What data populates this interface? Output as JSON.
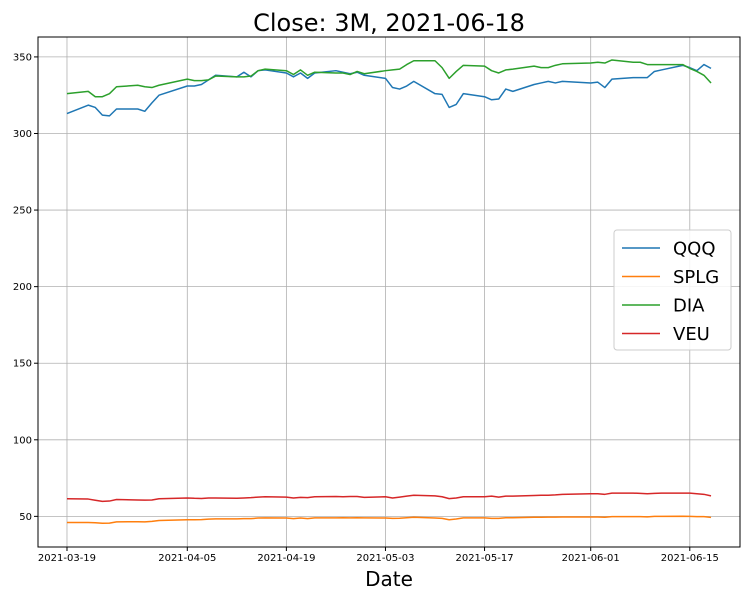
{
  "chart_data": {
    "type": "line",
    "title": "Close: 3M, 2021-06-18",
    "xlabel": "Date",
    "ylabel": "",
    "grid": true,
    "legend_position": "center-right",
    "ylim": [
      30,
      363
    ],
    "yticks": [
      50,
      100,
      150,
      200,
      250,
      300,
      350
    ],
    "xtick_labels": [
      "2021-03-19",
      "2021-04-05",
      "2021-04-19",
      "2021-05-03",
      "2021-05-17",
      "2021-06-01",
      "2021-06-15"
    ],
    "x": [
      "2021-03-19",
      "2021-03-22",
      "2021-03-23",
      "2021-03-24",
      "2021-03-25",
      "2021-03-26",
      "2021-03-29",
      "2021-03-30",
      "2021-03-31",
      "2021-04-01",
      "2021-04-05",
      "2021-04-06",
      "2021-04-07",
      "2021-04-08",
      "2021-04-09",
      "2021-04-12",
      "2021-04-13",
      "2021-04-14",
      "2021-04-15",
      "2021-04-16",
      "2021-04-19",
      "2021-04-20",
      "2021-04-21",
      "2021-04-22",
      "2021-04-23",
      "2021-04-26",
      "2021-04-27",
      "2021-04-28",
      "2021-04-29",
      "2021-04-30",
      "2021-05-03",
      "2021-05-04",
      "2021-05-05",
      "2021-05-06",
      "2021-05-07",
      "2021-05-10",
      "2021-05-11",
      "2021-05-12",
      "2021-05-13",
      "2021-05-14",
      "2021-05-17",
      "2021-05-18",
      "2021-05-19",
      "2021-05-20",
      "2021-05-21",
      "2021-05-24",
      "2021-05-25",
      "2021-05-26",
      "2021-05-27",
      "2021-05-28",
      "2021-06-01",
      "2021-06-02",
      "2021-06-03",
      "2021-06-04",
      "2021-06-07",
      "2021-06-08",
      "2021-06-09",
      "2021-06-10",
      "2021-06-11",
      "2021-06-14",
      "2021-06-15",
      "2021-06-16",
      "2021-06-17",
      "2021-06-18"
    ],
    "series": [
      {
        "name": "QQQ",
        "color": "#1f77b4",
        "values": [
          313,
          318.5,
          317,
          312,
          311.5,
          316,
          316,
          314.5,
          320,
          325,
          331,
          331,
          332,
          335,
          338,
          337,
          340,
          337,
          341,
          341.5,
          339.5,
          337,
          339.5,
          336,
          339.5,
          341,
          340,
          339,
          340,
          338,
          336,
          330,
          329,
          331,
          334,
          326,
          325.5,
          317,
          319,
          326,
          324,
          322,
          322.5,
          329,
          327.5,
          332,
          333,
          334,
          333,
          334,
          333,
          333.5,
          330,
          335.5,
          336.5,
          336.5,
          336.5,
          340.5,
          341.5,
          344.5,
          343,
          341,
          345,
          342.5
        ]
      },
      {
        "name": "SPLG",
        "color": "#ff7f0e",
        "values": [
          46,
          46,
          45.8,
          45.5,
          45.6,
          46.4,
          46.5,
          46.4,
          46.7,
          47.3,
          47.8,
          47.8,
          47.9,
          48.2,
          48.4,
          48.4,
          48.5,
          48.5,
          48.9,
          49,
          48.9,
          48.5,
          48.9,
          48.5,
          49,
          49,
          49.1,
          49,
          49.1,
          49,
          48.9,
          48.7,
          48.8,
          49.1,
          49.4,
          48.9,
          48.7,
          47.8,
          48.3,
          49,
          49,
          48.7,
          48.7,
          49.1,
          49.1,
          49.4,
          49.4,
          49.5,
          49.5,
          49.6,
          49.6,
          49.6,
          49.4,
          49.8,
          49.8,
          49.8,
          49.7,
          50,
          50,
          50.1,
          50,
          49.8,
          49.8,
          49.3
        ]
      },
      {
        "name": "DIA",
        "color": "#2ca02c",
        "values": [
          326,
          327.5,
          324,
          324,
          326,
          330.5,
          331.5,
          330.5,
          330,
          331.5,
          335.5,
          334.5,
          334.5,
          335,
          337.5,
          337,
          337,
          337.5,
          341,
          342,
          341,
          338.5,
          341.5,
          338,
          340,
          339.5,
          339.5,
          338.5,
          340.5,
          339,
          341,
          341.5,
          342,
          345,
          347.5,
          347.5,
          343,
          336,
          340.5,
          344.5,
          344,
          341,
          339.5,
          341.5,
          342,
          344,
          343,
          343,
          344.5,
          345.5,
          346,
          346.5,
          346,
          348,
          346.5,
          346.5,
          345,
          345,
          345,
          345,
          342.5,
          340.5,
          338,
          333
        ]
      },
      {
        "name": "VEU",
        "color": "#d62728",
        "values": [
          61.5,
          61.3,
          60.5,
          59.8,
          60,
          61,
          60.7,
          60.6,
          60.7,
          61.5,
          62,
          61.8,
          61.7,
          62,
          62,
          61.8,
          62,
          62.2,
          62.6,
          62.8,
          62.6,
          62,
          62.4,
          62.2,
          62.8,
          63,
          62.8,
          63,
          63,
          62.4,
          62.8,
          62,
          62.6,
          63.2,
          63.8,
          63.4,
          62.8,
          61.6,
          62,
          62.8,
          62.8,
          63.2,
          62.6,
          63.2,
          63.2,
          63.6,
          63.8,
          63.8,
          64,
          64.4,
          64.8,
          64.8,
          64.4,
          65.2,
          65.2,
          65,
          64.8,
          65,
          65.2,
          65.2,
          65.2,
          64.8,
          64.4,
          63.4
        ]
      }
    ]
  }
}
